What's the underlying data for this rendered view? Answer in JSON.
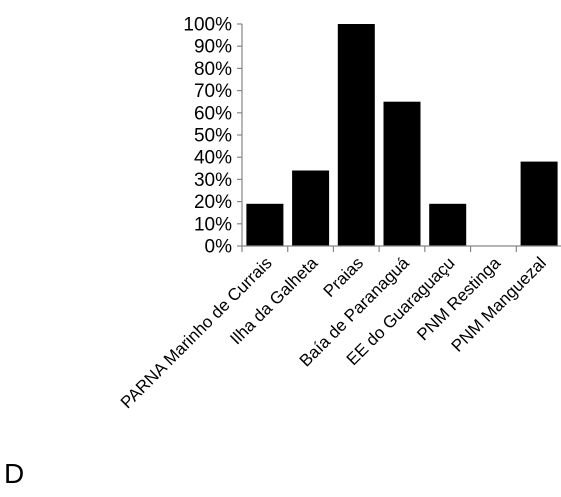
{
  "panel_label": "D",
  "chart_data": {
    "type": "bar",
    "categories": [
      "PARNA Marinho de Currais",
      "Ilha da Galheta",
      "Praias",
      "Baía de Paranaguá",
      "EE do Guaraguaçu",
      "PNM Restinga",
      "PNM Manguezal"
    ],
    "values": [
      19,
      34,
      100,
      65,
      19,
      0,
      38
    ],
    "yticks": [
      "0%",
      "10%",
      "20%",
      "30%",
      "40%",
      "50%",
      "60%",
      "70%",
      "80%",
      "90%",
      "100%"
    ],
    "ylim": [
      0,
      100
    ],
    "grid": false,
    "bar_color": "#000000",
    "axis_color": "#868686"
  }
}
